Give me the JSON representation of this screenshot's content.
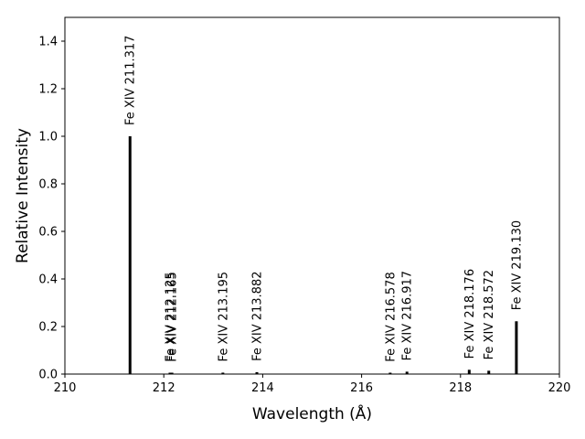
{
  "chart_data": {
    "type": "bar",
    "xlabel": "Wavelength (Å)",
    "ylabel": "Relative Intensity",
    "xlim": [
      210,
      220
    ],
    "ylim": [
      0,
      1.5
    ],
    "xticks": [
      "210",
      "212",
      "214",
      "216",
      "218",
      "220"
    ],
    "yticks": [
      "0.0",
      "0.2",
      "0.4",
      "0.6",
      "0.8",
      "1.0",
      "1.2",
      "1.4"
    ],
    "grid": false,
    "bar_color": "#000000",
    "lines": [
      {
        "label": "Fe XIV 211.317",
        "wavelength": 211.317,
        "intensity": 1.0
      },
      {
        "label": "Fe XIV 212.125",
        "wavelength": 212.125,
        "intensity": 0.005
      },
      {
        "label": "Fe XIV 212.165",
        "wavelength": 212.165,
        "intensity": 0.005
      },
      {
        "label": "Fe XIV 213.195",
        "wavelength": 213.195,
        "intensity": 0.006
      },
      {
        "label": "Fe XIV 213.882",
        "wavelength": 213.882,
        "intensity": 0.008
      },
      {
        "label": "Fe XIV 216.578",
        "wavelength": 216.578,
        "intensity": 0.005
      },
      {
        "label": "Fe XIV 216.917",
        "wavelength": 216.917,
        "intensity": 0.01
      },
      {
        "label": "Fe XIV 218.176",
        "wavelength": 218.176,
        "intensity": 0.018
      },
      {
        "label": "Fe XIV 218.572",
        "wavelength": 218.572,
        "intensity": 0.014
      },
      {
        "label": "Fe XIV 219.130",
        "wavelength": 219.13,
        "intensity": 0.222
      }
    ]
  }
}
